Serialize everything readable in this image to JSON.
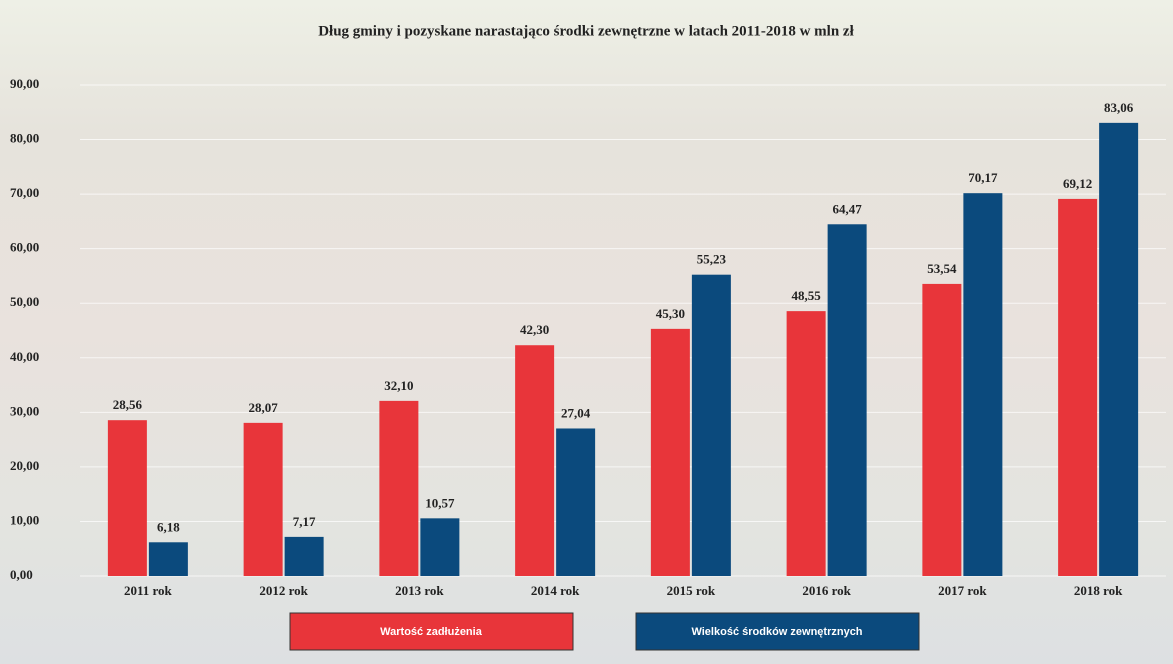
{
  "chart_data": {
    "type": "bar",
    "title": "Dług gminy i pozyskane narastająco środki zewnętrzne w latach 2011-2018 w mln zł",
    "categories": [
      "2011 rok",
      "2012 rok",
      "2013 rok",
      "2014 rok",
      "2015 rok",
      "2016 rok",
      "2017 rok",
      "2018 rok"
    ],
    "series": [
      {
        "name": "Wartość zadłużenia",
        "color": "#e8353a",
        "values": [
          28.56,
          28.07,
          32.1,
          42.3,
          45.3,
          48.55,
          53.54,
          69.12
        ],
        "value_labels": [
          "28,56",
          "28,07",
          "32,10",
          "42,30",
          "45,30",
          "48,55",
          "53,54",
          "69,12"
        ]
      },
      {
        "name": "Wielkość środków zewnętrznych",
        "color": "#0b4a7d",
        "values": [
          6.18,
          7.17,
          10.57,
          27.04,
          55.23,
          64.47,
          70.17,
          83.06
        ],
        "value_labels": [
          "6,18",
          "7,17",
          "10,57",
          "27,04",
          "55,23",
          "64,47",
          "70,17",
          "83,06"
        ]
      }
    ],
    "ylim": [
      0,
      90
    ],
    "yticks": [
      {
        "value": 0,
        "label": "0,00"
      },
      {
        "value": 10,
        "label": "10,00"
      },
      {
        "value": 20,
        "label": "20,00"
      },
      {
        "value": 30,
        "label": "30,00"
      },
      {
        "value": 40,
        "label": "40,00"
      },
      {
        "value": 50,
        "label": "50,00"
      },
      {
        "value": 60,
        "label": "60,00"
      },
      {
        "value": 70,
        "label": "70,00"
      },
      {
        "value": 80,
        "label": "80,00"
      },
      {
        "value": 90,
        "label": "90,00"
      }
    ],
    "grid": true
  }
}
